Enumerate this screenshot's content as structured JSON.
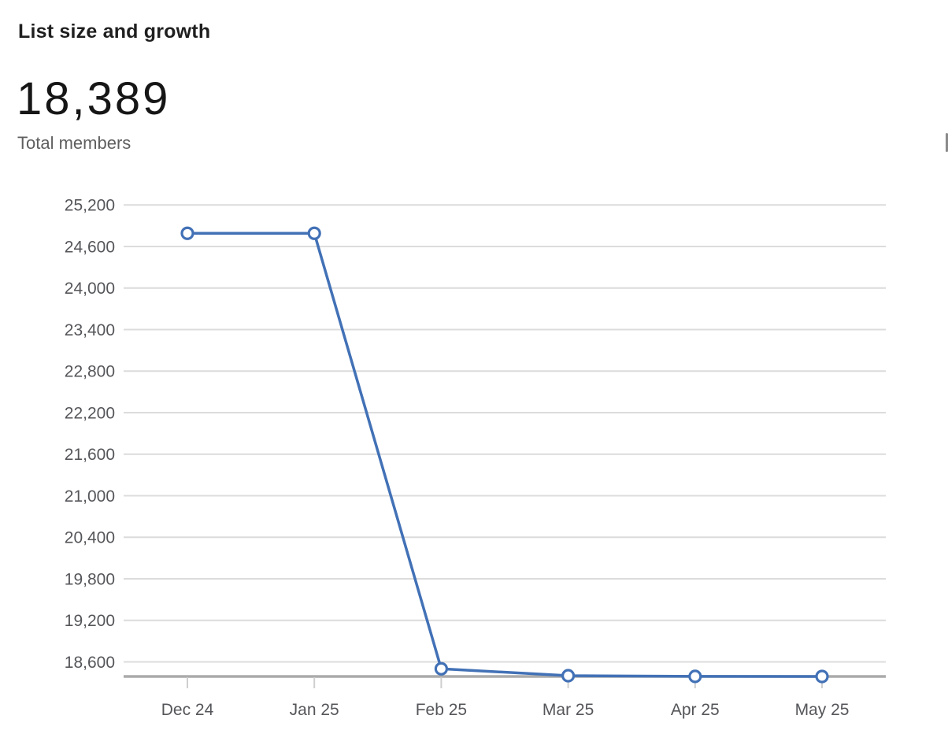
{
  "header": {
    "title": "List size and growth",
    "total_value": "18,389",
    "total_label": "Total members"
  },
  "colors": {
    "accent_line": "#4271b6",
    "marker_fill": "#ffffff",
    "gridline": "#dcdcdc",
    "baseline": "#ababab",
    "tick": "#cfcfcf",
    "axis_label": "#55565a",
    "title": "#1f1f1f",
    "big_number": "#161616",
    "sub_label": "#5f5f5f",
    "clipped_sliver": "#8a8a8a"
  },
  "chart_data": {
    "type": "line",
    "title": "List size and growth",
    "categories": [
      "Dec 24",
      "Jan 25",
      "Feb 25",
      "Mar 25",
      "Apr 25",
      "May 25"
    ],
    "series": [
      {
        "name": "Total members",
        "values": [
          24790,
          24790,
          18500,
          18400,
          18390,
          18389
        ]
      }
    ],
    "yticks": [
      18600,
      19200,
      19800,
      20400,
      21000,
      21600,
      22200,
      22800,
      23400,
      24000,
      24600,
      25200
    ],
    "ylim": [
      18389,
      25400
    ],
    "xlabel": "",
    "ylabel": "",
    "grid": "horizontal",
    "legend": "none",
    "markers": "circle-open"
  }
}
